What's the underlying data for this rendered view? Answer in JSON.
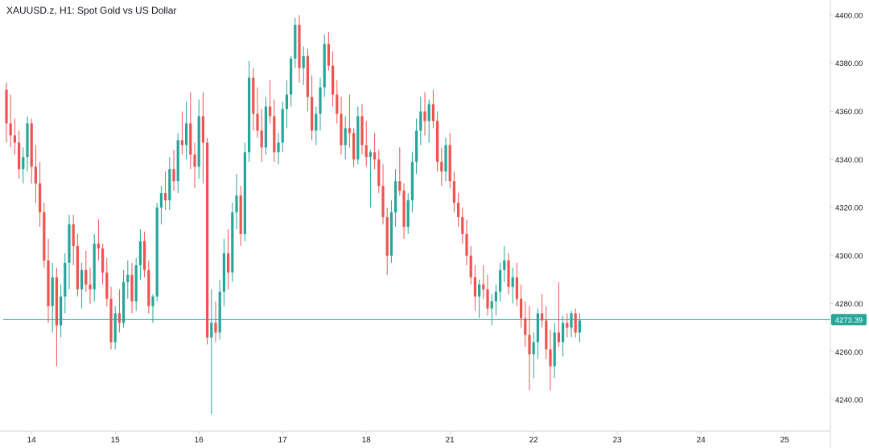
{
  "chart_data": {
    "type": "candlestick",
    "title": "XAUUSD.z, H1: Spot Gold vs US Dollar",
    "xlabel": "",
    "ylabel": "",
    "ylim": [
      4227,
      4405
    ],
    "y_ticks": [
      4240,
      4260,
      4280,
      4300,
      4320,
      4340,
      4360,
      4380,
      4400
    ],
    "y_tick_labels": [
      "4240.00",
      "4260.00",
      "4280.00",
      "4300.00",
      "4320.00",
      "4340.00",
      "4360.00",
      "4380.00",
      "4400.00"
    ],
    "x_ticks": [
      {
        "label": "14",
        "index": 6
      },
      {
        "label": "15",
        "index": 26
      },
      {
        "label": "16",
        "index": 46
      },
      {
        "label": "17",
        "index": 66
      },
      {
        "label": "18",
        "index": 86
      },
      {
        "label": "21",
        "index": 106
      },
      {
        "label": "22",
        "index": 126
      },
      {
        "label": "23",
        "index": 146
      },
      {
        "label": "24",
        "index": 166
      },
      {
        "label": "25",
        "index": 186
      }
    ],
    "current_price": 4273.39,
    "current_price_label": "4273.39",
    "grid": false,
    "legend": "none",
    "colors": {
      "up": "#26a69a",
      "down": "#ef5350",
      "price_line": "#26a69a",
      "axis_line": "#d1d4dc",
      "axis_text": "#131722"
    },
    "candles": [
      [
        4369,
        4372,
        4347,
        4355
      ],
      [
        4355,
        4367,
        4345,
        4350
      ],
      [
        4350,
        4357,
        4342,
        4347
      ],
      [
        4347,
        4352,
        4332,
        4336
      ],
      [
        4336,
        4345,
        4330,
        4341
      ],
      [
        4341,
        4358,
        4335,
        4355
      ],
      [
        4355,
        4357,
        4330,
        4337
      ],
      [
        4337,
        4346,
        4322,
        4330
      ],
      [
        4330,
        4339,
        4312,
        4318
      ],
      [
        4318,
        4322,
        4295,
        4298
      ],
      [
        4298,
        4307,
        4272,
        4279
      ],
      [
        4279,
        4297,
        4268,
        4291
      ],
      [
        4291,
        4295,
        4254,
        4271
      ],
      [
        4271,
        4288,
        4266,
        4283
      ],
      [
        4283,
        4301,
        4276,
        4297
      ],
      [
        4297,
        4317,
        4286,
        4313
      ],
      [
        4313,
        4317,
        4296,
        4304
      ],
      [
        4304,
        4309,
        4283,
        4286
      ],
      [
        4286,
        4297,
        4278,
        4294
      ],
      [
        4294,
        4302,
        4285,
        4288
      ],
      [
        4288,
        4295,
        4280,
        4286
      ],
      [
        4286,
        4309,
        4281,
        4305
      ],
      [
        4305,
        4315,
        4298,
        4303
      ],
      [
        4303,
        4305,
        4288,
        4293
      ],
      [
        4293,
        4299,
        4279,
        4282
      ],
      [
        4282,
        4287,
        4261,
        4264
      ],
      [
        4264,
        4279,
        4261,
        4276
      ],
      [
        4276,
        4286,
        4268,
        4272
      ],
      [
        4272,
        4294,
        4270,
        4289
      ],
      [
        4289,
        4298,
        4282,
        4292
      ],
      [
        4292,
        4297,
        4276,
        4281
      ],
      [
        4281,
        4299,
        4277,
        4296
      ],
      [
        4296,
        4311,
        4290,
        4306
      ],
      [
        4306,
        4310,
        4291,
        4294
      ],
      [
        4294,
        4298,
        4276,
        4279
      ],
      [
        4279,
        4284,
        4272,
        4283
      ],
      [
        4283,
        4322,
        4281,
        4320
      ],
      [
        4320,
        4329,
        4313,
        4326
      ],
      [
        4326,
        4335,
        4319,
        4323
      ],
      [
        4323,
        4341,
        4319,
        4336
      ],
      [
        4336,
        4344,
        4327,
        4331
      ],
      [
        4331,
        4351,
        4326,
        4348
      ],
      [
        4348,
        4360,
        4342,
        4346
      ],
      [
        4346,
        4364,
        4340,
        4355
      ],
      [
        4355,
        4368,
        4336,
        4342
      ],
      [
        4342,
        4347,
        4328,
        4337
      ],
      [
        4337,
        4365,
        4332,
        4358
      ],
      [
        4358,
        4368,
        4330,
        4347
      ],
      [
        4347,
        4349,
        4263,
        4266
      ],
      [
        4266,
        4286,
        4234,
        4272
      ],
      [
        4272,
        4281,
        4264,
        4268
      ],
      [
        4268,
        4290,
        4265,
        4285
      ],
      [
        4285,
        4307,
        4279,
        4301
      ],
      [
        4301,
        4311,
        4286,
        4293
      ],
      [
        4293,
        4322,
        4289,
        4318
      ],
      [
        4318,
        4334,
        4311,
        4325
      ],
      [
        4325,
        4329,
        4304,
        4309
      ],
      [
        4309,
        4347,
        4306,
        4343
      ],
      [
        4343,
        4381,
        4339,
        4374
      ],
      [
        4374,
        4378,
        4352,
        4359
      ],
      [
        4359,
        4370,
        4349,
        4352
      ],
      [
        4352,
        4361,
        4339,
        4345
      ],
      [
        4345,
        4366,
        4342,
        4362
      ],
      [
        4362,
        4373,
        4355,
        4358
      ],
      [
        4358,
        4365,
        4339,
        4343
      ],
      [
        4343,
        4351,
        4338,
        4347
      ],
      [
        4347,
        4364,
        4343,
        4361
      ],
      [
        4361,
        4373,
        4353,
        4367
      ],
      [
        4367,
        4383,
        4362,
        4382
      ],
      [
        4382,
        4399,
        4378,
        4396
      ],
      [
        4396,
        4400,
        4372,
        4378
      ],
      [
        4378,
        4387,
        4371,
        4383
      ],
      [
        4383,
        4386,
        4360,
        4366
      ],
      [
        4366,
        4375,
        4348,
        4352
      ],
      [
        4352,
        4362,
        4346,
        4359
      ],
      [
        4359,
        4374,
        4352,
        4370
      ],
      [
        4370,
        4392,
        4366,
        4388
      ],
      [
        4388,
        4393,
        4377,
        4379
      ],
      [
        4379,
        4385,
        4362,
        4367
      ],
      [
        4367,
        4373,
        4355,
        4359
      ],
      [
        4359,
        4366,
        4342,
        4346
      ],
      [
        4346,
        4358,
        4340,
        4353
      ],
      [
        4353,
        4367,
        4345,
        4351
      ],
      [
        4351,
        4353,
        4337,
        4340
      ],
      [
        4340,
        4362,
        4338,
        4358
      ],
      [
        4358,
        4363,
        4342,
        4346
      ],
      [
        4346,
        4356,
        4337,
        4341
      ],
      [
        4341,
        4344,
        4320,
        4343
      ],
      [
        4343,
        4351,
        4336,
        4340
      ],
      [
        4340,
        4344,
        4326,
        4329
      ],
      [
        4329,
        4338,
        4313,
        4316
      ],
      [
        4316,
        4320,
        4292,
        4300
      ],
      [
        4300,
        4323,
        4297,
        4318
      ],
      [
        4318,
        4336,
        4312,
        4331
      ],
      [
        4331,
        4345,
        4325,
        4327
      ],
      [
        4327,
        4330,
        4307,
        4312
      ],
      [
        4312,
        4326,
        4309,
        4323
      ],
      [
        4323,
        4343,
        4318,
        4339
      ],
      [
        4339,
        4357,
        4334,
        4352
      ],
      [
        4352,
        4366,
        4346,
        4360
      ],
      [
        4360,
        4368,
        4350,
        4356
      ],
      [
        4356,
        4365,
        4347,
        4363
      ],
      [
        4363,
        4369,
        4353,
        4356
      ],
      [
        4356,
        4360,
        4335,
        4339
      ],
      [
        4339,
        4345,
        4329,
        4335
      ],
      [
        4335,
        4349,
        4331,
        4346
      ],
      [
        4346,
        4351,
        4328,
        4331
      ],
      [
        4331,
        4335,
        4318,
        4322
      ],
      [
        4322,
        4326,
        4312,
        4316
      ],
      [
        4316,
        4320,
        4305,
        4309
      ],
      [
        4309,
        4315,
        4296,
        4300
      ],
      [
        4300,
        4304,
        4288,
        4291
      ],
      [
        4291,
        4296,
        4277,
        4283
      ],
      [
        4283,
        4290,
        4274,
        4288
      ],
      [
        4288,
        4296,
        4282,
        4286
      ],
      [
        4286,
        4292,
        4275,
        4278
      ],
      [
        4278,
        4284,
        4271,
        4281
      ],
      [
        4281,
        4288,
        4275,
        4285
      ],
      [
        4285,
        4297,
        4281,
        4294
      ],
      [
        4294,
        4304,
        4289,
        4298
      ],
      [
        4298,
        4301,
        4284,
        4287
      ],
      [
        4287,
        4295,
        4280,
        4291
      ],
      [
        4291,
        4297,
        4279,
        4282
      ],
      [
        4282,
        4288,
        4270,
        4274
      ],
      [
        4274,
        4281,
        4262,
        4267
      ],
      [
        4267,
        4279,
        4244,
        4259
      ],
      [
        4259,
        4268,
        4249,
        4264
      ],
      [
        4264,
        4278,
        4257,
        4276
      ],
      [
        4276,
        4284,
        4270,
        4273
      ],
      [
        4273,
        4279,
        4257,
        4261
      ],
      [
        4261,
        4269,
        4244,
        4254
      ],
      [
        4254,
        4272,
        4249,
        4268
      ],
      [
        4268,
        4289,
        4262,
        4264
      ],
      [
        4264,
        4275,
        4258,
        4272
      ],
      [
        4272,
        4276,
        4266,
        4270
      ],
      [
        4270,
        4277,
        4266,
        4276
      ],
      [
        4276,
        4278,
        4266,
        4268
      ],
      [
        4268,
        4276,
        4264,
        4273
      ]
    ]
  }
}
